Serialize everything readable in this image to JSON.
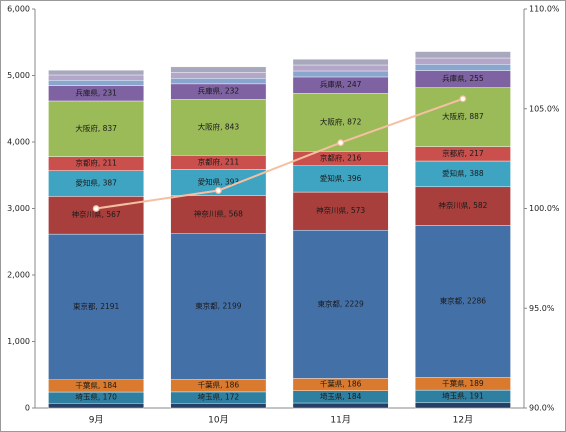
{
  "chart_data": {
    "type": "bar",
    "stacked": true,
    "grid": false,
    "categories": [
      "9月",
      "10月",
      "11月",
      "12月"
    ],
    "ylim": [
      0,
      6000
    ],
    "yticks": [
      0,
      {
        "value": 1000,
        "label": "1,000"
      },
      {
        "value": 2000,
        "label": "2,000"
      },
      {
        "value": 3000,
        "label": "3,000"
      },
      {
        "value": 4000,
        "label": "4,000"
      },
      {
        "value": 5000,
        "label": "5,000"
      },
      {
        "value": 6000,
        "label": "6,000"
      }
    ],
    "y2lim": [
      90,
      110
    ],
    "y2ticks": [
      {
        "value": 90,
        "label": "90.0%"
      },
      {
        "value": 95,
        "label": "95.0%"
      },
      {
        "value": 100,
        "label": "100.0%"
      },
      {
        "value": 105,
        "label": "105.0%"
      },
      {
        "value": 110,
        "label": "110.0%"
      }
    ],
    "series": [
      {
        "name": null,
        "color": "#253f66",
        "values": [
          70,
          70,
          75,
          78
        ]
      },
      {
        "name": "埼玉県",
        "color": "#2f7fa0",
        "values": [
          170,
          172,
          184,
          191
        ],
        "value_labels": [
          "埼玉県, 170",
          "埼玉県, 172",
          "埼玉県, 184",
          "埼玉県, 191"
        ]
      },
      {
        "name": "千葉県",
        "color": "#d97a2e",
        "values": [
          184,
          186,
          186,
          189
        ],
        "value_labels": [
          "千葉県, 184",
          "千葉県, 186",
          "千葉県, 186",
          "千葉県, 189"
        ]
      },
      {
        "name": "東京都",
        "color": "#4470a8",
        "values": [
          2191,
          2199,
          2229,
          2286
        ],
        "value_labels": [
          "東京都, 2191",
          "東京都, 2199",
          "東京都, 2229",
          "東京都, 2286"
        ]
      },
      {
        "name": "神奈川県",
        "color": "#a93f3c",
        "values": [
          567,
          568,
          573,
          582
        ],
        "value_labels": [
          "神奈川県, 567",
          "神奈川県, 568",
          "神奈川県, 573",
          "神奈川県, 582"
        ]
      },
      {
        "name": "愛知県",
        "color": "#3fa4c2",
        "values": [
          387,
          393,
          396,
          388
        ],
        "value_labels": [
          "愛知県, 387",
          "愛知県, 393",
          "愛知県, 396",
          "愛知県, 388"
        ]
      },
      {
        "name": "京都府",
        "color": "#c9504c",
        "values": [
          211,
          211,
          216,
          217
        ],
        "value_labels": [
          "京都府, 211",
          "京都府, 211",
          "京都府, 216",
          "京都府, 217"
        ]
      },
      {
        "name": "大阪府",
        "color": "#9bbb59",
        "values": [
          837,
          843,
          872,
          887
        ],
        "value_labels": [
          "大阪府, 837",
          "大阪府, 843",
          "大阪府, 872",
          "大阪府, 887"
        ]
      },
      {
        "name": "兵庫県",
        "color": "#7e62a1",
        "values": [
          231,
          232,
          247,
          255
        ],
        "value_labels": [
          "兵庫県, 231",
          "兵庫県, 232",
          "兵庫県, 247",
          "兵庫県, 255"
        ]
      },
      {
        "name": null,
        "color": "#8aa6cf",
        "values": [
          80,
          85,
          90,
          95
        ]
      },
      {
        "name": null,
        "color": "#b3a6c9",
        "values": [
          80,
          85,
          90,
          95
        ]
      },
      {
        "name": null,
        "color": "#a7a7bd",
        "values": [
          72,
          86,
          87,
          97
        ]
      },
      {
        "name": null,
        "type": "line",
        "axis": "y2",
        "color": "#f6c0a0",
        "values": [
          100.0,
          100.9,
          103.3,
          105.5
        ]
      }
    ]
  }
}
